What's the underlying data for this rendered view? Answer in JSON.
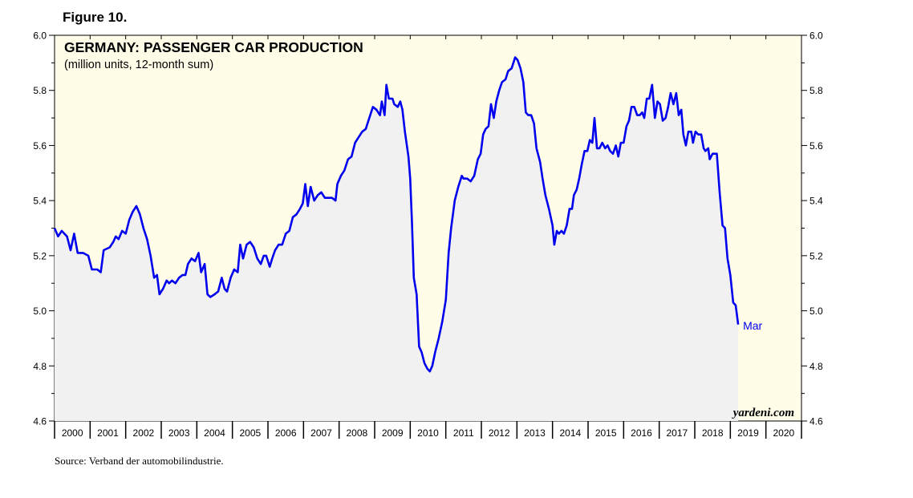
{
  "figure_label": "Figure 10.",
  "source": "Source: Verband der automobilindustrie.",
  "watermark": "yardeni.com",
  "colors": {
    "plot_bg": "#fffde8",
    "area_fill": "#f1f1f1",
    "line": "#0000ee",
    "text": "#000000"
  },
  "chart_data": {
    "type": "area",
    "title": "GERMANY: PASSENGER CAR PRODUCTION",
    "subtitle": "(million units, 12-month sum)",
    "xlabel": "",
    "ylabel": "",
    "ylim": [
      4.6,
      6.0
    ],
    "yticks": [
      "4.6",
      "4.8",
      "5.0",
      "5.2",
      "5.4",
      "5.6",
      "5.8",
      "6.0"
    ],
    "xlim": [
      2000,
      2021
    ],
    "year_labels": [
      "2000",
      "2001",
      "2002",
      "2003",
      "2004",
      "2005",
      "2006",
      "2007",
      "2008",
      "2009",
      "2010",
      "2011",
      "2012",
      "2013",
      "2014",
      "2015",
      "2016",
      "2017",
      "2018",
      "2019",
      "2020"
    ],
    "last_point_label": "Mar",
    "grid": false,
    "legend": "none",
    "series": [
      {
        "values": [
          [
            2000.0,
            5.3
          ],
          [
            2000.1,
            5.27
          ],
          [
            2000.2,
            5.29
          ],
          [
            2000.35,
            5.27
          ],
          [
            2000.45,
            5.22
          ],
          [
            2000.55,
            5.28
          ],
          [
            2000.65,
            5.21
          ],
          [
            2000.8,
            5.21
          ],
          [
            2000.95,
            5.2
          ],
          [
            2001.05,
            5.15
          ],
          [
            2001.2,
            5.15
          ],
          [
            2001.3,
            5.14
          ],
          [
            2001.38,
            5.22
          ],
          [
            2001.55,
            5.23
          ],
          [
            2001.65,
            5.25
          ],
          [
            2001.72,
            5.27
          ],
          [
            2001.8,
            5.26
          ],
          [
            2001.9,
            5.29
          ],
          [
            2002.0,
            5.28
          ],
          [
            2002.1,
            5.33
          ],
          [
            2002.2,
            5.36
          ],
          [
            2002.3,
            5.38
          ],
          [
            2002.4,
            5.35
          ],
          [
            2002.5,
            5.3
          ],
          [
            2002.6,
            5.26
          ],
          [
            2002.7,
            5.2
          ],
          [
            2002.8,
            5.12
          ],
          [
            2002.88,
            5.13
          ],
          [
            2002.95,
            5.06
          ],
          [
            2003.05,
            5.08
          ],
          [
            2003.15,
            5.11
          ],
          [
            2003.22,
            5.1
          ],
          [
            2003.3,
            5.11
          ],
          [
            2003.4,
            5.1
          ],
          [
            2003.5,
            5.12
          ],
          [
            2003.6,
            5.13
          ],
          [
            2003.68,
            5.13
          ],
          [
            2003.75,
            5.17
          ],
          [
            2003.85,
            5.19
          ],
          [
            2003.95,
            5.18
          ],
          [
            2004.05,
            5.21
          ],
          [
            2004.12,
            5.14
          ],
          [
            2004.22,
            5.17
          ],
          [
            2004.3,
            5.06
          ],
          [
            2004.38,
            5.05
          ],
          [
            2004.5,
            5.06
          ],
          [
            2004.6,
            5.07
          ],
          [
            2004.7,
            5.12
          ],
          [
            2004.78,
            5.08
          ],
          [
            2004.85,
            5.07
          ],
          [
            2004.95,
            5.12
          ],
          [
            2005.05,
            5.15
          ],
          [
            2005.15,
            5.14
          ],
          [
            2005.22,
            5.24
          ],
          [
            2005.3,
            5.19
          ],
          [
            2005.4,
            5.24
          ],
          [
            2005.5,
            5.25
          ],
          [
            2005.6,
            5.23
          ],
          [
            2005.7,
            5.19
          ],
          [
            2005.8,
            5.17
          ],
          [
            2005.88,
            5.2
          ],
          [
            2005.95,
            5.2
          ],
          [
            2006.05,
            5.16
          ],
          [
            2006.12,
            5.19
          ],
          [
            2006.2,
            5.22
          ],
          [
            2006.3,
            5.24
          ],
          [
            2006.4,
            5.24
          ],
          [
            2006.5,
            5.28
          ],
          [
            2006.6,
            5.29
          ],
          [
            2006.7,
            5.34
          ],
          [
            2006.8,
            5.35
          ],
          [
            2006.9,
            5.37
          ],
          [
            2006.98,
            5.39
          ],
          [
            2007.05,
            5.46
          ],
          [
            2007.12,
            5.38
          ],
          [
            2007.2,
            5.45
          ],
          [
            2007.3,
            5.4
          ],
          [
            2007.4,
            5.42
          ],
          [
            2007.5,
            5.43
          ],
          [
            2007.6,
            5.41
          ],
          [
            2007.7,
            5.41
          ],
          [
            2007.8,
            5.41
          ],
          [
            2007.9,
            5.4
          ],
          [
            2007.95,
            5.46
          ],
          [
            2008.05,
            5.49
          ],
          [
            2008.15,
            5.51
          ],
          [
            2008.25,
            5.55
          ],
          [
            2008.35,
            5.56
          ],
          [
            2008.45,
            5.61
          ],
          [
            2008.55,
            5.63
          ],
          [
            2008.65,
            5.65
          ],
          [
            2008.75,
            5.66
          ],
          [
            2008.85,
            5.7
          ],
          [
            2008.95,
            5.74
          ],
          [
            2009.05,
            5.73
          ],
          [
            2009.15,
            5.71
          ],
          [
            2009.2,
            5.76
          ],
          [
            2009.28,
            5.71
          ],
          [
            2009.33,
            5.82
          ],
          [
            2009.4,
            5.77
          ],
          [
            2009.5,
            5.77
          ],
          [
            2009.55,
            5.75
          ],
          [
            2009.65,
            5.74
          ],
          [
            2009.72,
            5.76
          ],
          [
            2009.78,
            5.73
          ],
          [
            2009.85,
            5.65
          ],
          [
            2009.95,
            5.56
          ],
          [
            2010.0,
            5.48
          ],
          [
            2010.05,
            5.32
          ],
          [
            2010.1,
            5.12
          ],
          [
            2010.18,
            5.06
          ],
          [
            2010.25,
            4.87
          ],
          [
            2010.32,
            4.85
          ],
          [
            2010.4,
            4.81
          ],
          [
            2010.48,
            4.79
          ],
          [
            2010.55,
            4.78
          ],
          [
            2010.62,
            4.8
          ],
          [
            2010.7,
            4.85
          ],
          [
            2010.8,
            4.9
          ],
          [
            2010.9,
            4.96
          ],
          [
            2011.0,
            5.04
          ],
          [
            2011.08,
            5.21
          ],
          [
            2011.15,
            5.3
          ],
          [
            2011.25,
            5.4
          ],
          [
            2011.35,
            5.45
          ],
          [
            2011.45,
            5.49
          ],
          [
            2011.5,
            5.48
          ],
          [
            2011.6,
            5.48
          ],
          [
            2011.7,
            5.47
          ],
          [
            2011.8,
            5.49
          ],
          [
            2011.9,
            5.55
          ],
          [
            2011.98,
            5.57
          ],
          [
            2012.05,
            5.64
          ],
          [
            2012.12,
            5.66
          ],
          [
            2012.2,
            5.67
          ],
          [
            2012.27,
            5.75
          ],
          [
            2012.35,
            5.7
          ],
          [
            2012.42,
            5.76
          ],
          [
            2012.5,
            5.8
          ],
          [
            2012.58,
            5.83
          ],
          [
            2012.68,
            5.84
          ],
          [
            2012.75,
            5.87
          ],
          [
            2012.85,
            5.88
          ],
          [
            2012.95,
            5.92
          ],
          [
            2013.02,
            5.91
          ],
          [
            2013.1,
            5.88
          ],
          [
            2013.18,
            5.83
          ],
          [
            2013.25,
            5.72
          ],
          [
            2013.32,
            5.71
          ],
          [
            2013.4,
            5.71
          ],
          [
            2013.48,
            5.68
          ],
          [
            2013.55,
            5.59
          ],
          [
            2013.65,
            5.54
          ],
          [
            2013.72,
            5.48
          ],
          [
            2013.8,
            5.42
          ],
          [
            2013.9,
            5.37
          ],
          [
            2014.0,
            5.31
          ],
          [
            2014.05,
            5.24
          ],
          [
            2014.12,
            5.29
          ],
          [
            2014.18,
            5.28
          ],
          [
            2014.25,
            5.29
          ],
          [
            2014.32,
            5.28
          ],
          [
            2014.4,
            5.31
          ],
          [
            2014.48,
            5.37
          ],
          [
            2014.55,
            5.37
          ],
          [
            2014.6,
            5.42
          ],
          [
            2014.68,
            5.44
          ],
          [
            2014.75,
            5.48
          ],
          [
            2014.82,
            5.53
          ],
          [
            2014.9,
            5.58
          ],
          [
            2014.98,
            5.58
          ],
          [
            2015.05,
            5.62
          ],
          [
            2015.12,
            5.61
          ],
          [
            2015.18,
            5.7
          ],
          [
            2015.25,
            5.59
          ],
          [
            2015.32,
            5.59
          ],
          [
            2015.4,
            5.61
          ],
          [
            2015.48,
            5.59
          ],
          [
            2015.55,
            5.6
          ],
          [
            2015.62,
            5.58
          ],
          [
            2015.7,
            5.57
          ],
          [
            2015.78,
            5.6
          ],
          [
            2015.85,
            5.56
          ],
          [
            2015.92,
            5.61
          ],
          [
            2016.0,
            5.61
          ],
          [
            2016.08,
            5.67
          ],
          [
            2016.15,
            5.69
          ],
          [
            2016.22,
            5.74
          ],
          [
            2016.3,
            5.74
          ],
          [
            2016.38,
            5.71
          ],
          [
            2016.45,
            5.71
          ],
          [
            2016.52,
            5.72
          ],
          [
            2016.58,
            5.7
          ],
          [
            2016.65,
            5.77
          ],
          [
            2016.72,
            5.77
          ],
          [
            2016.8,
            5.82
          ],
          [
            2016.88,
            5.7
          ],
          [
            2016.95,
            5.76
          ],
          [
            2017.02,
            5.75
          ],
          [
            2017.1,
            5.69
          ],
          [
            2017.18,
            5.7
          ],
          [
            2017.25,
            5.74
          ],
          [
            2017.32,
            5.79
          ],
          [
            2017.4,
            5.75
          ],
          [
            2017.48,
            5.79
          ],
          [
            2017.55,
            5.71
          ],
          [
            2017.62,
            5.73
          ],
          [
            2017.68,
            5.64
          ],
          [
            2017.75,
            5.6
          ],
          [
            2017.82,
            5.65
          ],
          [
            2017.9,
            5.65
          ],
          [
            2017.95,
            5.61
          ],
          [
            2018.02,
            5.65
          ],
          [
            2018.1,
            5.64
          ],
          [
            2018.18,
            5.64
          ],
          [
            2018.25,
            5.59
          ],
          [
            2018.3,
            5.58
          ],
          [
            2018.38,
            5.59
          ],
          [
            2018.42,
            5.55
          ],
          [
            2018.5,
            5.57
          ],
          [
            2018.55,
            5.57
          ],
          [
            2018.62,
            5.57
          ],
          [
            2018.7,
            5.43
          ],
          [
            2018.78,
            5.31
          ],
          [
            2018.85,
            5.3
          ],
          [
            2018.92,
            5.19
          ],
          [
            2019.0,
            5.13
          ],
          [
            2019.08,
            5.03
          ],
          [
            2019.15,
            5.02
          ],
          [
            2019.22,
            4.95
          ]
        ]
      }
    ]
  }
}
